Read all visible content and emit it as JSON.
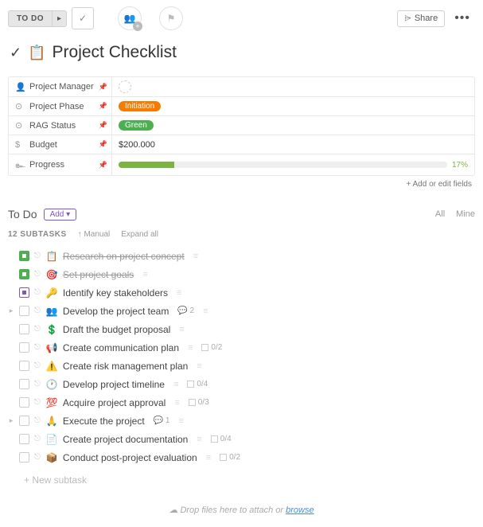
{
  "toolbar": {
    "status_label": "TO DO",
    "share_label": "Share"
  },
  "title": "Project Checklist",
  "fields": [
    {
      "icon": "👤",
      "label": "Project Manager",
      "type": "avatar"
    },
    {
      "icon": "⊙",
      "label": "Project Phase",
      "type": "tag",
      "tag_text": "Initiation",
      "tag_color": "#f57c00"
    },
    {
      "icon": "⊙",
      "label": "RAG Status",
      "type": "tag",
      "tag_text": "Green",
      "tag_color": "#4caf50"
    },
    {
      "icon": "$",
      "label": "Budget",
      "type": "text",
      "value": "$200.000"
    },
    {
      "icon": "๛",
      "label": "Progress",
      "type": "progress",
      "percent": 17
    }
  ],
  "add_fields_label": "+ Add or edit fields",
  "section": {
    "title": "To Do",
    "add_label": "Add ▾",
    "all_label": "All",
    "mine_label": "Mine"
  },
  "subtask_bar": {
    "count_label": "12 SUBTASKS",
    "manual_label": "↑ Manual",
    "expand_label": "Expand all"
  },
  "tasks": [
    {
      "check": "done",
      "emoji": "📋",
      "title": "Research on project concept",
      "strike": true
    },
    {
      "check": "done",
      "emoji": "🎯",
      "title": "Set project goals",
      "strike": true
    },
    {
      "check": "purple",
      "emoji": "🔑",
      "title": "Identify key stakeholders"
    },
    {
      "check": "open",
      "emoji": "👥",
      "title": "Develop the project team",
      "expandable": true,
      "comments": 2
    },
    {
      "check": "open",
      "emoji": "💲",
      "title": "Draft the budget proposal"
    },
    {
      "check": "open",
      "emoji": "📢",
      "title": "Create communication plan",
      "sub": "0/2"
    },
    {
      "check": "open",
      "emoji": "⚠️",
      "title": "Create risk management plan"
    },
    {
      "check": "open",
      "emoji": "🕐",
      "title": "Develop project timeline",
      "sub": "0/4"
    },
    {
      "check": "open",
      "emoji": "💯",
      "title": "Acquire project approval",
      "sub": "0/3"
    },
    {
      "check": "open",
      "emoji": "🙏",
      "title": "Execute the project",
      "expandable": true,
      "comments": 1
    },
    {
      "check": "open",
      "emoji": "📄",
      "title": "Create project documentation",
      "sub": "0/4"
    },
    {
      "check": "open",
      "emoji": "📦",
      "title": "Conduct post-project evaluation",
      "sub": "0/2"
    }
  ],
  "new_subtask_label": "+   New subtask",
  "dropzone": {
    "text": "Drop files here to attach or ",
    "link": "browse"
  }
}
